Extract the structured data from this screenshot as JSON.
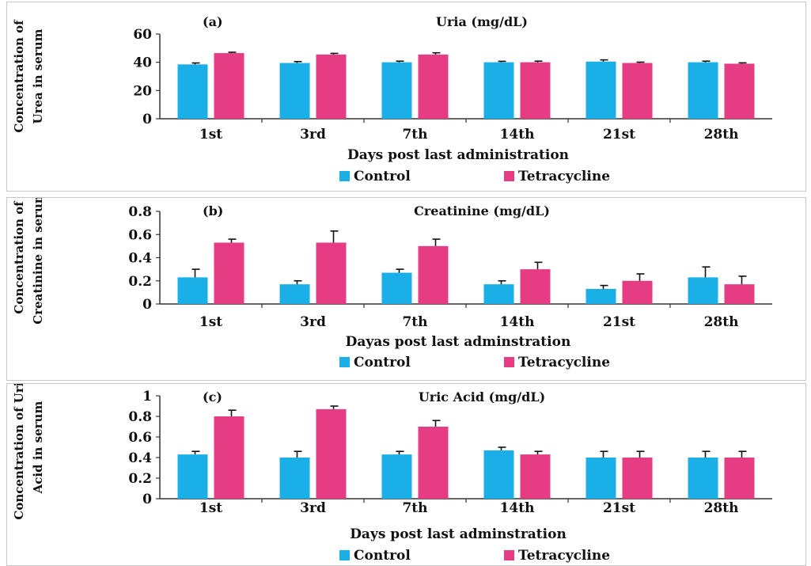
{
  "colors": {
    "control": "#1AAFE6",
    "tetracycline": "#E53C84",
    "axis": "#333333",
    "text": "#111111"
  },
  "chart_data": [
    {
      "type": "bar",
      "panel_label": "(a)",
      "title": "Uria (mg/dL)",
      "ylabel_lines": [
        "Concentration of",
        "Urea in serum"
      ],
      "xlabel": "Days post last administration",
      "categories": [
        "1st",
        "3rd",
        "7th",
        "14th",
        "21st",
        "28th"
      ],
      "ylim": [
        0,
        60
      ],
      "yticks": [
        "0",
        "20",
        "40",
        "60"
      ],
      "ytick_values": [
        0,
        20,
        40,
        60
      ],
      "series": [
        {
          "name": "Control",
          "values": [
            38.5,
            39.5,
            40,
            40,
            40.5,
            40
          ],
          "errors": [
            1,
            1,
            0.8,
            0.7,
            1.2,
            0.8
          ]
        },
        {
          "name": "Tetracycline",
          "values": [
            46.5,
            45.5,
            45.5,
            40,
            39.5,
            39
          ],
          "errors": [
            0.6,
            0.8,
            1.2,
            0.8,
            0.6,
            0.6
          ]
        }
      ],
      "legend": [
        "Control",
        "Tetracycline"
      ]
    },
    {
      "type": "bar",
      "panel_label": "(b)",
      "title": "Creatinine (mg/dL)",
      "ylabel_lines": [
        "Concentration of",
        "Creatinine in serum"
      ],
      "xlabel": "Dayas post last adminstration",
      "categories": [
        "1st",
        "3rd",
        "7th",
        "14th",
        "21st",
        "28th"
      ],
      "ylim": [
        0,
        0.8
      ],
      "yticks": [
        "0",
        "0.2",
        "0.4",
        "0.6",
        "0.8"
      ],
      "ytick_values": [
        0,
        0.2,
        0.4,
        0.6,
        0.8
      ],
      "series": [
        {
          "name": "Control",
          "values": [
            0.23,
            0.17,
            0.27,
            0.17,
            0.13,
            0.23
          ],
          "errors": [
            0.07,
            0.03,
            0.03,
            0.03,
            0.03,
            0.09
          ]
        },
        {
          "name": "Tetracycline",
          "values": [
            0.53,
            0.53,
            0.5,
            0.3,
            0.2,
            0.17
          ],
          "errors": [
            0.03,
            0.1,
            0.06,
            0.06,
            0.06,
            0.07
          ]
        }
      ],
      "legend": [
        "Control",
        "Tetracycline"
      ]
    },
    {
      "type": "bar",
      "panel_label": "(c)",
      "title": "Uric Acid (mg/dL)",
      "ylabel_lines": [
        "Concentration  of  Uric",
        "Acid in serum"
      ],
      "xlabel": "Days post  last adminstration",
      "categories": [
        "1st",
        "3rd",
        "7th",
        "14th",
        "21st",
        "28th"
      ],
      "ylim": [
        0,
        1
      ],
      "yticks": [
        "0",
        "0.2",
        "0.4",
        "0.6",
        "0.8",
        "1"
      ],
      "ytick_values": [
        0,
        0.2,
        0.4,
        0.6,
        0.8,
        1
      ],
      "series": [
        {
          "name": "Control",
          "values": [
            0.43,
            0.4,
            0.43,
            0.47,
            0.4,
            0.4
          ],
          "errors": [
            0.03,
            0.06,
            0.03,
            0.03,
            0.06,
            0.06
          ]
        },
        {
          "name": "Tetracycline",
          "values": [
            0.8,
            0.87,
            0.7,
            0.43,
            0.4,
            0.4
          ],
          "errors": [
            0.06,
            0.03,
            0.06,
            0.03,
            0.06,
            0.06
          ]
        }
      ],
      "legend": [
        "Control",
        "Tetracycline"
      ]
    }
  ]
}
